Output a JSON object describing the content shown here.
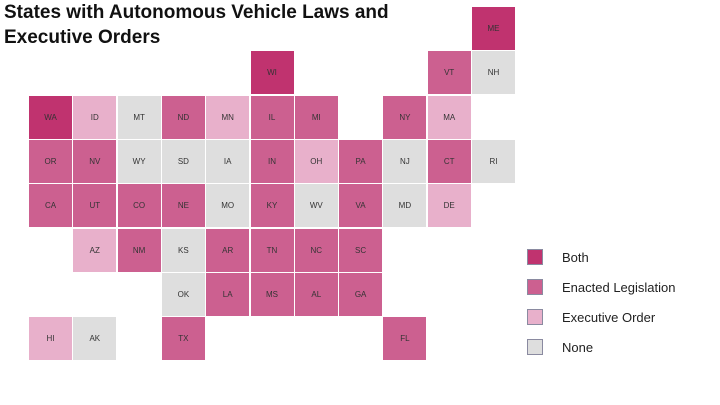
{
  "title": "States with Autonomous Vehicle Laws and Executive Orders",
  "colors": {
    "both": "#c0336f",
    "enacted": "#cc6090",
    "executive": "#e8b0cb",
    "none": "#dedede"
  },
  "legend": [
    {
      "key": "both",
      "label": "Both"
    },
    {
      "key": "enacted",
      "label": "Enacted Legislation"
    },
    {
      "key": "executive",
      "label": "Executive Order"
    },
    {
      "key": "none",
      "label": "None"
    }
  ],
  "states": [
    {
      "code": "ME",
      "row": 0,
      "col": 10,
      "status": "both"
    },
    {
      "code": "WI",
      "row": 1,
      "col": 5,
      "status": "both"
    },
    {
      "code": "VT",
      "row": 1,
      "col": 9,
      "status": "enacted"
    },
    {
      "code": "NH",
      "row": 1,
      "col": 10,
      "status": "none"
    },
    {
      "code": "WA",
      "row": 2,
      "col": 0,
      "status": "both"
    },
    {
      "code": "ID",
      "row": 2,
      "col": 1,
      "status": "executive"
    },
    {
      "code": "MT",
      "row": 2,
      "col": 2,
      "status": "none"
    },
    {
      "code": "ND",
      "row": 2,
      "col": 3,
      "status": "enacted"
    },
    {
      "code": "MN",
      "row": 2,
      "col": 4,
      "status": "executive"
    },
    {
      "code": "IL",
      "row": 2,
      "col": 5,
      "status": "enacted"
    },
    {
      "code": "MI",
      "row": 2,
      "col": 6,
      "status": "enacted"
    },
    {
      "code": "NY",
      "row": 2,
      "col": 8,
      "status": "enacted"
    },
    {
      "code": "MA",
      "row": 2,
      "col": 9,
      "status": "executive"
    },
    {
      "code": "OR",
      "row": 3,
      "col": 0,
      "status": "enacted"
    },
    {
      "code": "NV",
      "row": 3,
      "col": 1,
      "status": "enacted"
    },
    {
      "code": "WY",
      "row": 3,
      "col": 2,
      "status": "none"
    },
    {
      "code": "SD",
      "row": 3,
      "col": 3,
      "status": "none"
    },
    {
      "code": "IA",
      "row": 3,
      "col": 4,
      "status": "none"
    },
    {
      "code": "IN",
      "row": 3,
      "col": 5,
      "status": "enacted"
    },
    {
      "code": "OH",
      "row": 3,
      "col": 6,
      "status": "executive"
    },
    {
      "code": "PA",
      "row": 3,
      "col": 7,
      "status": "enacted"
    },
    {
      "code": "NJ",
      "row": 3,
      "col": 8,
      "status": "none"
    },
    {
      "code": "CT",
      "row": 3,
      "col": 9,
      "status": "enacted"
    },
    {
      "code": "RI",
      "row": 3,
      "col": 10,
      "status": "none"
    },
    {
      "code": "CA",
      "row": 4,
      "col": 0,
      "status": "enacted"
    },
    {
      "code": "UT",
      "row": 4,
      "col": 1,
      "status": "enacted"
    },
    {
      "code": "CO",
      "row": 4,
      "col": 2,
      "status": "enacted"
    },
    {
      "code": "NE",
      "row": 4,
      "col": 3,
      "status": "enacted"
    },
    {
      "code": "MO",
      "row": 4,
      "col": 4,
      "status": "none"
    },
    {
      "code": "KY",
      "row": 4,
      "col": 5,
      "status": "enacted"
    },
    {
      "code": "WV",
      "row": 4,
      "col": 6,
      "status": "none"
    },
    {
      "code": "VA",
      "row": 4,
      "col": 7,
      "status": "enacted"
    },
    {
      "code": "MD",
      "row": 4,
      "col": 8,
      "status": "none"
    },
    {
      "code": "DE",
      "row": 4,
      "col": 9,
      "status": "executive"
    },
    {
      "code": "AZ",
      "row": 5,
      "col": 1,
      "status": "executive"
    },
    {
      "code": "NM",
      "row": 5,
      "col": 2,
      "status": "enacted"
    },
    {
      "code": "KS",
      "row": 5,
      "col": 3,
      "status": "none"
    },
    {
      "code": "AR",
      "row": 5,
      "col": 4,
      "status": "enacted"
    },
    {
      "code": "TN",
      "row": 5,
      "col": 5,
      "status": "enacted"
    },
    {
      "code": "NC",
      "row": 5,
      "col": 6,
      "status": "enacted"
    },
    {
      "code": "SC",
      "row": 5,
      "col": 7,
      "status": "enacted"
    },
    {
      "code": "OK",
      "row": 6,
      "col": 3,
      "status": "none"
    },
    {
      "code": "LA",
      "row": 6,
      "col": 4,
      "status": "enacted"
    },
    {
      "code": "MS",
      "row": 6,
      "col": 5,
      "status": "enacted"
    },
    {
      "code": "AL",
      "row": 6,
      "col": 6,
      "status": "enacted"
    },
    {
      "code": "GA",
      "row": 6,
      "col": 7,
      "status": "enacted"
    },
    {
      "code": "HI",
      "row": 7,
      "col": 0,
      "status": "executive"
    },
    {
      "code": "AK",
      "row": 7,
      "col": 1,
      "status": "none"
    },
    {
      "code": "TX",
      "row": 7,
      "col": 3,
      "status": "enacted"
    },
    {
      "code": "FL",
      "row": 7,
      "col": 8,
      "status": "enacted"
    }
  ]
}
